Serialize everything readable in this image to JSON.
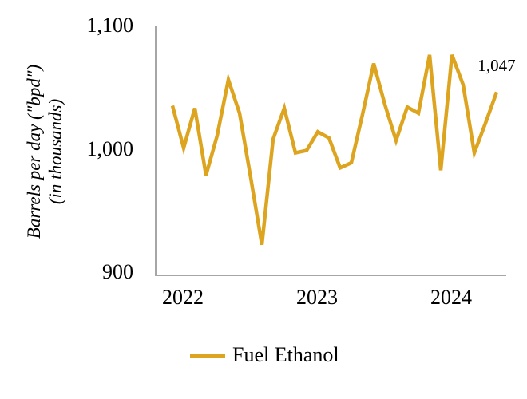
{
  "chart_data": {
    "type": "line",
    "title": "",
    "categories": [
      "Jan 2022",
      "Feb 2022",
      "Mar 2022",
      "Apr 2022",
      "May 2022",
      "Jun 2022",
      "Jul 2022",
      "Aug 2022",
      "Sep 2022",
      "Oct 2022",
      "Nov 2022",
      "Dec 2022",
      "Jan 2023",
      "Feb 2023",
      "Mar 2023",
      "Apr 2023",
      "May 2023",
      "Jun 2023",
      "Jul 2023",
      "Aug 2023",
      "Sep 2023",
      "Oct 2023",
      "Nov 2023",
      "Dec 2023",
      "Jan 2024",
      "Feb 2024",
      "Mar 2024",
      "Apr 2024",
      "May 2024",
      "Jun 2024"
    ],
    "series": [
      {
        "name": "Fuel Ethanol",
        "values": [
          1036,
          1002,
          1034,
          980,
          1012,
          1057,
          1030,
          978,
          924,
          1009,
          1034,
          998,
          1000,
          1015,
          1010,
          986,
          990,
          1029,
          1070,
          1037,
          1008,
          1035,
          1030,
          1077,
          984,
          1077,
          1053,
          998,
          1022,
          1047
        ]
      }
    ],
    "ylabel_line1": "Barrels per day (\"bpd\")",
    "ylabel_line2": "(in thousands)",
    "ylim": [
      900,
      1100
    ],
    "yticks": [
      {
        "label": "1,100",
        "value": 1100
      },
      {
        "label": "1,000",
        "value": 1000
      },
      {
        "label": "900",
        "value": 900
      }
    ],
    "xticks": [
      {
        "label": "2022",
        "index": 0
      },
      {
        "label": "2023",
        "index": 12
      },
      {
        "label": "2024",
        "index": 24
      }
    ],
    "grid": "off",
    "legend_position": "bottom",
    "line_color": "#dda420",
    "axis_color": "#a6a6a6",
    "last_point_label": "1,047"
  },
  "legend": {
    "label": "Fuel Ethanol"
  }
}
